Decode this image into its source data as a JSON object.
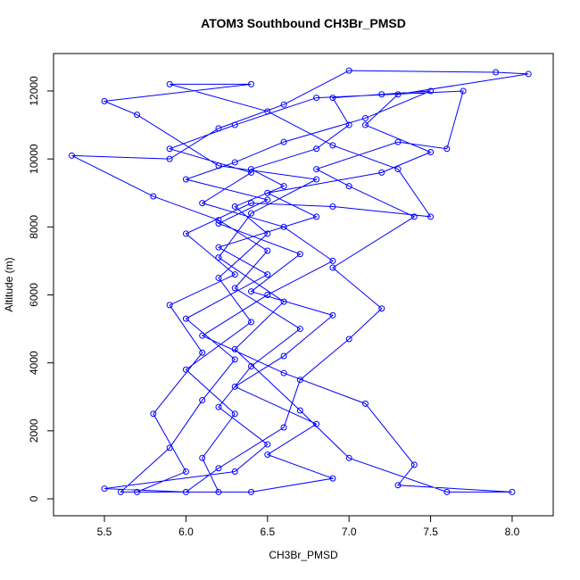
{
  "chart_data": {
    "type": "line",
    "title": "ATOM3 Southbound CH3Br_PMSD",
    "x_label": "CH3Br_PMSD",
    "y_label": "Altitude (m)",
    "color": "#0000ff",
    "markers": true,
    "xlim": [
      5.188,
      8.252
    ],
    "ylim": [
      -499,
      13102
    ],
    "xticks": [
      5.5,
      {
        "value": 6,
        "label": "6.0"
      },
      6.5,
      {
        "value": 7,
        "label": "7.0"
      },
      7.5,
      {
        "value": 8,
        "label": "8.0"
      }
    ],
    "yticks": [
      0,
      2000,
      4000,
      6000,
      8000,
      10000,
      12000
    ],
    "x": [
      6.2,
      6.1,
      6.3,
      6.0,
      6.4,
      6.2,
      6.5,
      6.3,
      6.6,
      6.4,
      6.8,
      7.0,
      6.9,
      7.2,
      7.5,
      7.1,
      6.6,
      6.3,
      6.0,
      6.5,
      6.2,
      6.7,
      6.4,
      6.9,
      6.6,
      6.3,
      6.8,
      6.5,
      6.9,
      6.4,
      5.6,
      5.9,
      6.1,
      6.3,
      6.0,
      6.5,
      6.2,
      6.8,
      6.5,
      7.2,
      7.5,
      7.1,
      7.3,
      8.1,
      7.9,
      7.0,
      6.6,
      6.2,
      5.9,
      5.3,
      5.8,
      6.2,
      6.5,
      6.3,
      6.7,
      6.4,
      6.2,
      6.5,
      6.3,
      5.5,
      6.0,
      6.2,
      6.6,
      6.7,
      7.0,
      7.2,
      6.9,
      7.4,
      7.0,
      6.8,
      7.3,
      7.6,
      7.7,
      6.8,
      6.3,
      5.9,
      6.4,
      6.1,
      6.6,
      6.9,
      6.5,
      6.1,
      6.6,
      7.1,
      7.4,
      7.3,
      8.0,
      7.6,
      7.0,
      6.7,
      6.3,
      6.6,
      6.2,
      6.4,
      6.8,
      6.2,
      5.7,
      5.5,
      6.4,
      5.9,
      6.5,
      6.9,
      7.3,
      7.5,
      6.9,
      6.4,
      6.0,
      6.3,
      5.9,
      6.1,
      5.8,
      6.0,
      5.7
    ],
    "values": [
      200,
      1200,
      2500,
      3800,
      5200,
      6500,
      7800,
      8600,
      9200,
      9700,
      10300,
      11000,
      11800,
      11900,
      12000,
      11200,
      10500,
      9900,
      9400,
      8800,
      8100,
      7200,
      6100,
      5400,
      4200,
      3300,
      2200,
      1300,
      600,
      200,
      200,
      1500,
      2900,
      4100,
      5300,
      6600,
      7400,
      8300,
      9000,
      9600,
      10200,
      11000,
      11900,
      12500,
      12550,
      12600,
      11600,
      10900,
      10000,
      10100,
      8900,
      8200,
      7300,
      6200,
      5000,
      3900,
      2700,
      1600,
      800,
      300,
      200,
      900,
      2100,
      3500,
      4700,
      5600,
      6800,
      8300,
      9200,
      9700,
      10500,
      10300,
      12000,
      11800,
      11000,
      10300,
      9600,
      8700,
      8000,
      7000,
      6000,
      4800,
      3700,
      2800,
      1000,
      400,
      200,
      200,
      1200,
      2600,
      4400,
      5800,
      7100,
      8400,
      9400,
      9800,
      11300,
      11700,
      12200,
      12200,
      11400,
      10400,
      9700,
      8300,
      8600,
      8700,
      7800,
      6600,
      5700,
      4300,
      2500,
      800,
      200
    ]
  }
}
